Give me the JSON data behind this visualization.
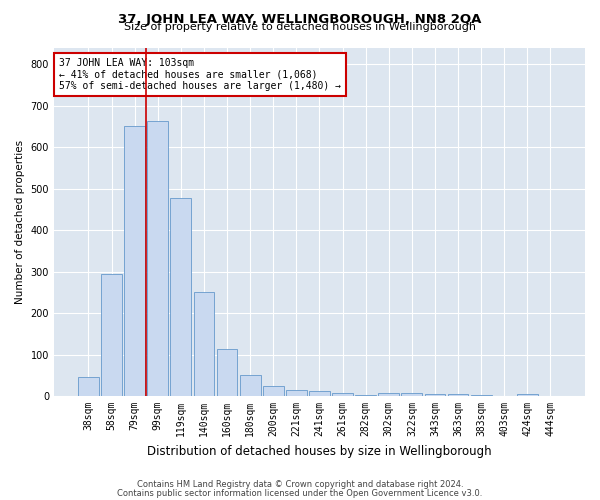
{
  "title": "37, JOHN LEA WAY, WELLINGBOROUGH, NN8 2QA",
  "subtitle": "Size of property relative to detached houses in Wellingborough",
  "xlabel": "Distribution of detached houses by size in Wellingborough",
  "ylabel": "Number of detached properties",
  "categories": [
    "38sqm",
    "58sqm",
    "79sqm",
    "99sqm",
    "119sqm",
    "140sqm",
    "160sqm",
    "180sqm",
    "200sqm",
    "221sqm",
    "241sqm",
    "261sqm",
    "282sqm",
    "302sqm",
    "322sqm",
    "343sqm",
    "363sqm",
    "383sqm",
    "403sqm",
    "424sqm",
    "444sqm"
  ],
  "values": [
    45,
    293,
    650,
    663,
    477,
    250,
    113,
    50,
    25,
    14,
    13,
    8,
    2,
    8,
    8,
    5,
    5,
    2,
    0,
    5,
    0
  ],
  "bar_color": "#c9d9f0",
  "bar_edge_color": "#6699cc",
  "vline_x_index": 3,
  "vline_color": "#cc0000",
  "annotation_line1": "37 JOHN LEA WAY: 103sqm",
  "annotation_line2": "← 41% of detached houses are smaller (1,068)",
  "annotation_line3": "57% of semi-detached houses are larger (1,480) →",
  "annotation_box_color": "#ffffff",
  "annotation_box_edge": "#cc0000",
  "footer1": "Contains HM Land Registry data © Crown copyright and database right 2024.",
  "footer2": "Contains public sector information licensed under the Open Government Licence v3.0.",
  "ylim": [
    0,
    840
  ],
  "yticks": [
    0,
    100,
    200,
    300,
    400,
    500,
    600,
    700,
    800
  ],
  "background_color": "#dde6f0",
  "grid_color": "#ffffff",
  "title_fontsize": 9.5,
  "subtitle_fontsize": 8.0,
  "xlabel_fontsize": 8.5,
  "ylabel_fontsize": 7.5,
  "tick_fontsize": 7.0,
  "footer_fontsize": 6.0
}
